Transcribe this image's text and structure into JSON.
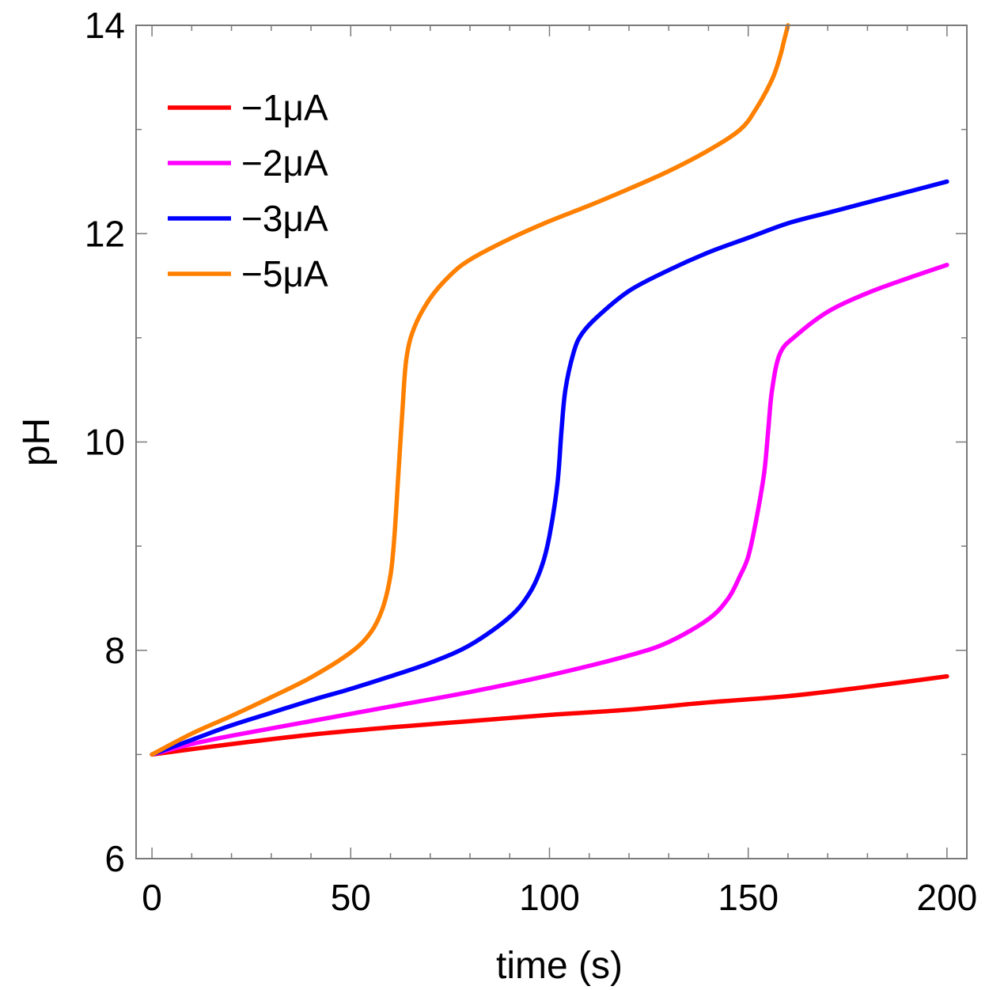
{
  "chart_data": {
    "type": "line",
    "title": "",
    "xlabel": "time (s)",
    "ylabel": "pH",
    "xlim": [
      -4,
      205
    ],
    "ylim": [
      6,
      14
    ],
    "xticks": [
      0,
      50,
      100,
      150,
      200
    ],
    "xtick_labels": [
      "0",
      "50",
      "100",
      "150",
      "200"
    ],
    "xminor_step": 10,
    "yticks": [
      6,
      8,
      10,
      12,
      14
    ],
    "ytick_labels": [
      "6",
      "8",
      "10",
      "12",
      "14"
    ],
    "yminor_step": 1,
    "grid": false,
    "legend_position": "top-left",
    "series": [
      {
        "name": "−1μA",
        "color": "#ff0000",
        "points": [
          [
            0,
            7.0
          ],
          [
            20,
            7.1
          ],
          [
            40,
            7.19
          ],
          [
            60,
            7.26
          ],
          [
            80,
            7.32
          ],
          [
            100,
            7.38
          ],
          [
            120,
            7.43
          ],
          [
            140,
            7.5
          ],
          [
            160,
            7.56
          ],
          [
            180,
            7.65
          ],
          [
            200,
            7.75
          ]
        ]
      },
      {
        "name": "−2μA",
        "color": "#ff00ff",
        "points": [
          [
            0,
            7.0
          ],
          [
            10,
            7.1
          ],
          [
            20,
            7.18
          ],
          [
            40,
            7.32
          ],
          [
            60,
            7.46
          ],
          [
            80,
            7.6
          ],
          [
            100,
            7.76
          ],
          [
            120,
            7.95
          ],
          [
            130,
            8.08
          ],
          [
            140,
            8.3
          ],
          [
            145,
            8.5
          ],
          [
            148,
            8.72
          ],
          [
            150,
            8.9
          ],
          [
            152,
            9.25
          ],
          [
            154,
            9.7
          ],
          [
            155,
            10.1
          ],
          [
            156,
            10.5
          ],
          [
            158,
            10.85
          ],
          [
            162,
            11.02
          ],
          [
            170,
            11.25
          ],
          [
            180,
            11.43
          ],
          [
            190,
            11.57
          ],
          [
            200,
            11.7
          ]
        ]
      },
      {
        "name": "−3μA",
        "color": "#0000ff",
        "points": [
          [
            0,
            7.0
          ],
          [
            10,
            7.14
          ],
          [
            20,
            7.28
          ],
          [
            30,
            7.4
          ],
          [
            40,
            7.52
          ],
          [
            50,
            7.63
          ],
          [
            60,
            7.75
          ],
          [
            70,
            7.88
          ],
          [
            80,
            8.05
          ],
          [
            90,
            8.32
          ],
          [
            95,
            8.55
          ],
          [
            98,
            8.8
          ],
          [
            100,
            9.1
          ],
          [
            102,
            9.6
          ],
          [
            103,
            10.1
          ],
          [
            104,
            10.5
          ],
          [
            106,
            10.85
          ],
          [
            108,
            11.03
          ],
          [
            112,
            11.2
          ],
          [
            120,
            11.45
          ],
          [
            130,
            11.65
          ],
          [
            140,
            11.82
          ],
          [
            150,
            11.96
          ],
          [
            160,
            12.1
          ],
          [
            170,
            12.2
          ],
          [
            180,
            12.3
          ],
          [
            190,
            12.4
          ],
          [
            200,
            12.5
          ]
        ]
      },
      {
        "name": "−5μA",
        "color": "#ff8000",
        "points": [
          [
            0,
            7.0
          ],
          [
            10,
            7.2
          ],
          [
            20,
            7.37
          ],
          [
            30,
            7.55
          ],
          [
            40,
            7.74
          ],
          [
            50,
            7.98
          ],
          [
            55,
            8.17
          ],
          [
            58,
            8.4
          ],
          [
            60,
            8.72
          ],
          [
            61,
            9.1
          ],
          [
            62,
            9.7
          ],
          [
            63,
            10.3
          ],
          [
            64,
            10.8
          ],
          [
            66,
            11.1
          ],
          [
            70,
            11.38
          ],
          [
            75,
            11.6
          ],
          [
            80,
            11.75
          ],
          [
            90,
            11.95
          ],
          [
            100,
            12.12
          ],
          [
            110,
            12.27
          ],
          [
            120,
            12.43
          ],
          [
            130,
            12.6
          ],
          [
            140,
            12.8
          ],
          [
            148,
            13.0
          ],
          [
            152,
            13.2
          ],
          [
            156,
            13.48
          ],
          [
            158,
            13.7
          ],
          [
            159,
            13.85
          ],
          [
            160,
            14.0
          ]
        ]
      }
    ]
  }
}
